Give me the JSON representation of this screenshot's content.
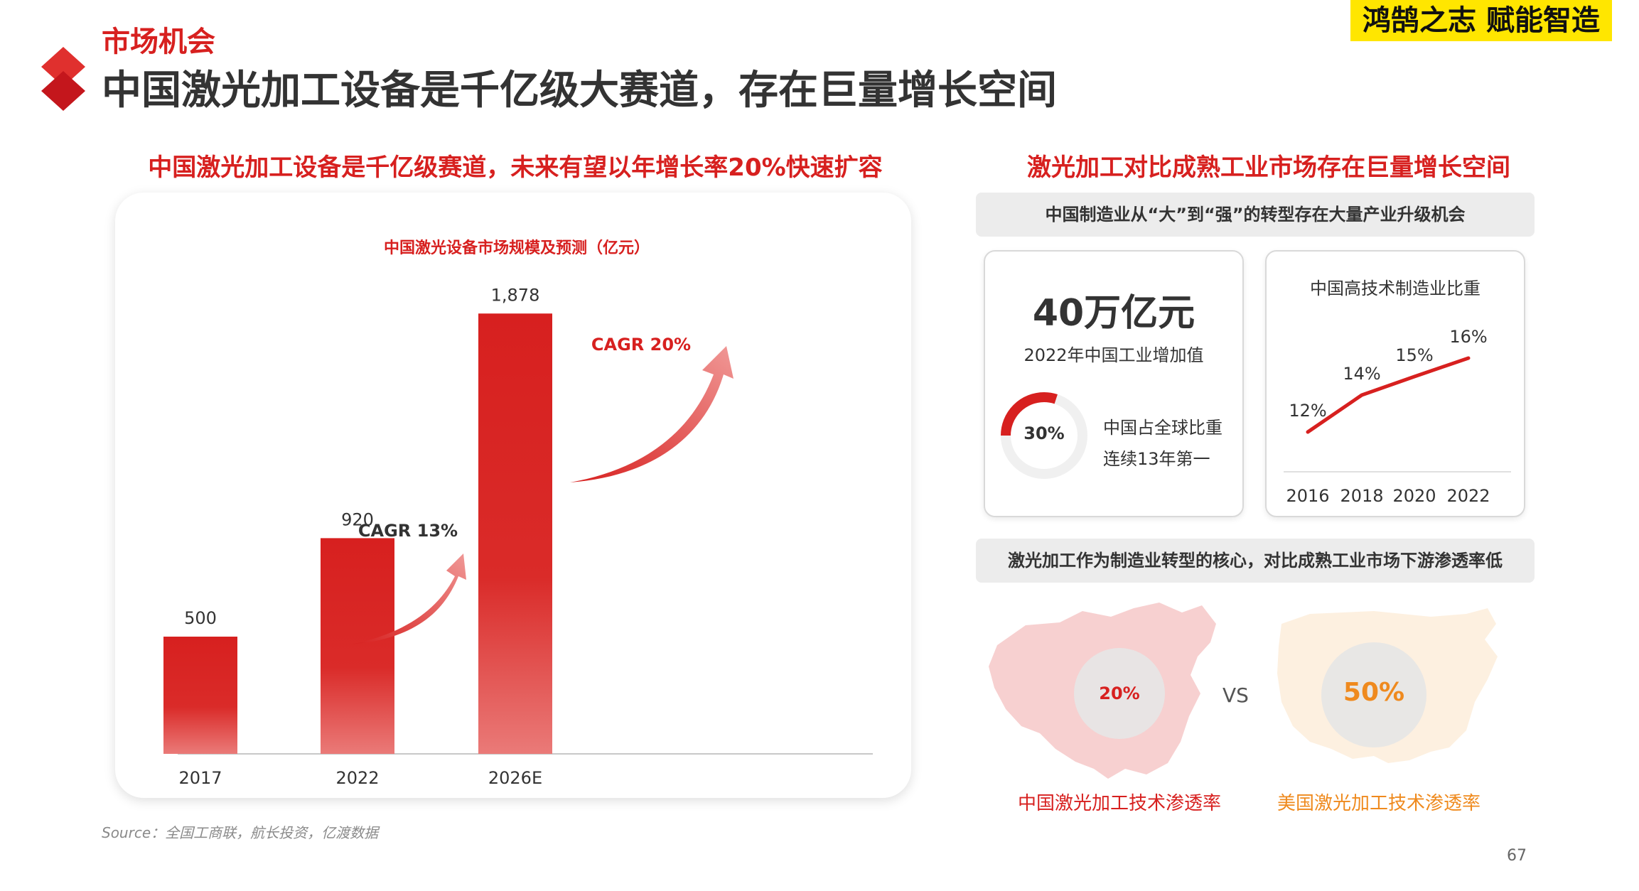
{
  "header": {
    "section_label": "市场机会",
    "title": "中国激光加工设备是千亿级大赛道，存在巨量增长空间",
    "brand": "鸿鹄之志 赋能智造"
  },
  "left": {
    "heading": "中国激光加工设备是千亿级赛道，未来有望以年增长率20%快速扩容"
  },
  "chart_data": [
    {
      "type": "bar",
      "title": "中国激光设备市场规模及预测（亿元）",
      "categories": [
        "2017",
        "2022",
        "2026E"
      ],
      "values": [
        500,
        920,
        1878
      ],
      "value_labels": [
        "500",
        "920",
        "1,878"
      ],
      "annotations": [
        "CAGR 13%",
        "CAGR 20%"
      ],
      "ylim": [
        0,
        2000
      ],
      "grid": false,
      "colors": {
        "bar": "#d7201f",
        "arrow": "#e14b49"
      }
    },
    {
      "type": "line",
      "title": "中国高技术制造业比重",
      "x": [
        "2016",
        "2018",
        "2020",
        "2022"
      ],
      "values": [
        12,
        14,
        15,
        16
      ],
      "value_labels": [
        "12%",
        "14%",
        "15%",
        "16%"
      ],
      "ylim": [
        11,
        17
      ],
      "colors": {
        "line": "#d7201f"
      }
    }
  ],
  "source": "Source：全国工商联，航长投资，亿渡数据",
  "page_number": "67",
  "right": {
    "heading": "激光加工对比成熟工业市场存在巨量增长空间",
    "banner1": "中国制造业从“大”到“强”的转型存在大量产业升级机会",
    "card1": {
      "big_number": "40万亿元",
      "big_caption": "2022年中国工业增加值",
      "share_value": "30%",
      "share_fraction": 0.3,
      "share_line1": "中国占全球比重",
      "share_line2": "连续13年第一"
    },
    "banner2": "激光加工作为制造业转型的核心，对比成熟工业市场下游渗透率低",
    "comparison": {
      "china_value": "20%",
      "china_caption": "中国激光加工技术渗透率",
      "vs": "VS",
      "us_value": "50%",
      "us_caption": "美国激光加工技术渗透率"
    }
  },
  "colors": {
    "accent": "#d7201f",
    "orange": "#ef8a1e",
    "brand_bg": "#ffe600"
  }
}
